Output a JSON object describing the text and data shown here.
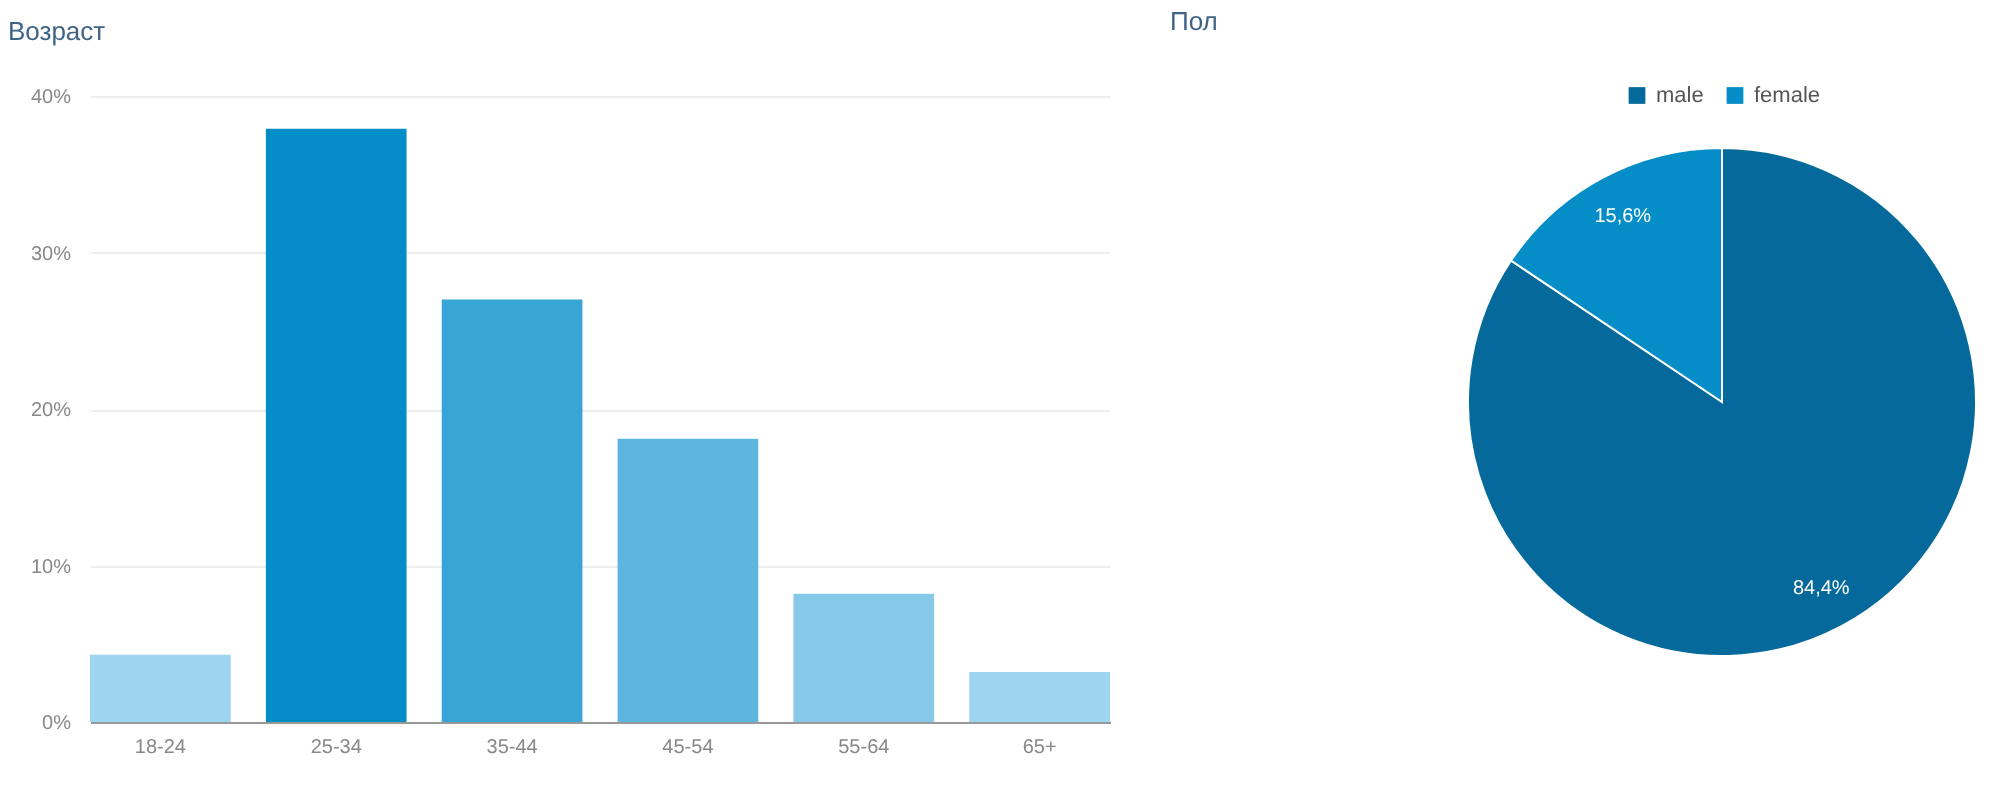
{
  "chart_data": [
    {
      "type": "bar",
      "title": "Возраст",
      "categories": [
        "18-24",
        "25-34",
        "35-44",
        "45-54",
        "55-64",
        "65+"
      ],
      "values": [
        4.3,
        37.9,
        27.0,
        18.1,
        8.2,
        3.2
      ],
      "colors": [
        "#9dd5f0",
        "#058dc7",
        "#37a5d6",
        "#5db6df",
        "#87c9e8",
        "#9dd5f0"
      ],
      "ylim": [
        0,
        40
      ],
      "yticks": [
        {
          "value": 0,
          "label": "0%"
        },
        {
          "value": 10,
          "label": "10%"
        },
        {
          "value": 20,
          "label": "20%"
        },
        {
          "value": 30,
          "label": "30%"
        },
        {
          "value": 40,
          "label": "40%"
        }
      ],
      "grid": "y"
    },
    {
      "type": "pie",
      "title": "Пол",
      "categories": [
        "male",
        "female"
      ],
      "values": [
        84.4,
        15.6
      ],
      "colors": [
        "#056a9b",
        "#058dc7"
      ],
      "value_labels": [
        "84,4%",
        "15,6%"
      ],
      "legend": "top"
    }
  ]
}
